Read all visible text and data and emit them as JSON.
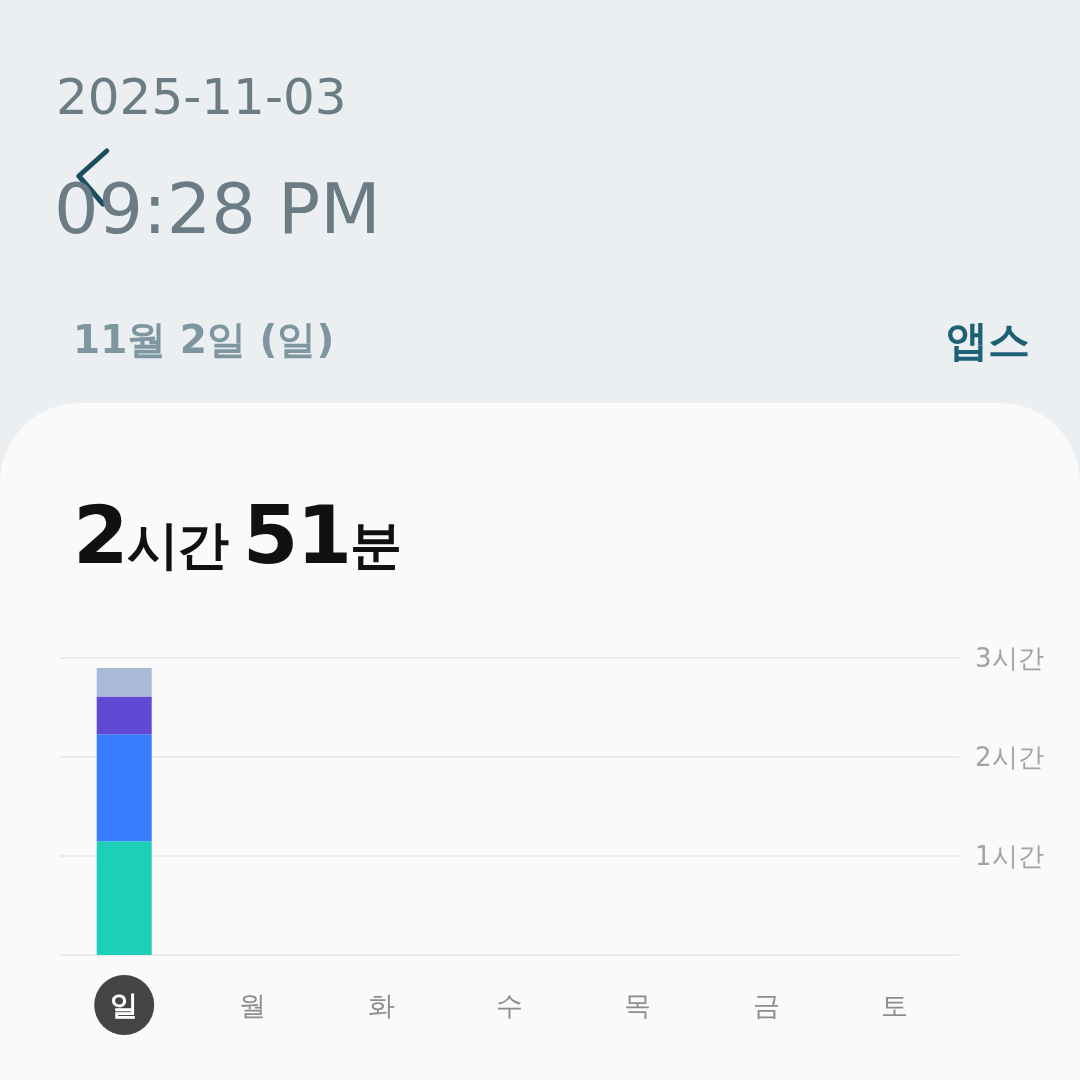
{
  "chart_data": {
    "type": "bar",
    "title": "2시간 51분",
    "subtitle": "11월 2일 (일)",
    "annotations": [
      "2025-11-03",
      "09:28 PM",
      "앱스"
    ],
    "categories": [
      "일",
      "월",
      "화",
      "수",
      "목",
      "금",
      "토"
    ],
    "stacked": true,
    "series": [
      {
        "color": "#1ecfb8",
        "values": [
          1.15,
          null,
          null,
          null,
          null,
          null,
          null
        ]
      },
      {
        "color": "#3a7cfe",
        "values": [
          1.08,
          null,
          null,
          null,
          null,
          null,
          null
        ]
      },
      {
        "color": "#6149d3",
        "values": [
          0.38,
          null,
          null,
          null,
          null,
          null,
          null
        ]
      },
      {
        "color": "#a9b9d8",
        "values": [
          0.29,
          null,
          null,
          null,
          null,
          null,
          null
        ]
      }
    ],
    "ylim": [
      0,
      3
    ],
    "yticks": [
      {
        "value": 0,
        "label": null
      },
      {
        "value": 1,
        "label": "1시간"
      },
      {
        "value": 2,
        "label": "2시간"
      },
      {
        "value": 3,
        "label": "3시간"
      }
    ],
    "grid": "y"
  }
}
